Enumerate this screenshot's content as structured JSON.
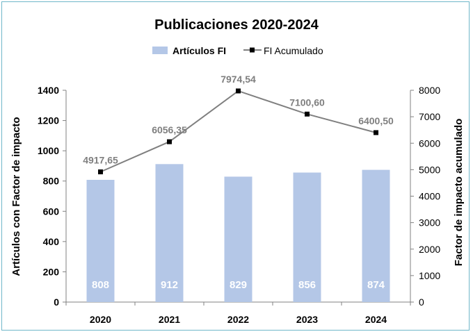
{
  "chart_data": {
    "type": "bar",
    "title": "Publicaciones 2020-2024",
    "categories": [
      "2020",
      "2021",
      "2022",
      "2023",
      "2024"
    ],
    "series": [
      {
        "name": "Artículos FI",
        "type": "bar",
        "axis": "left",
        "color": "#b4c7e7",
        "values": [
          808,
          912,
          829,
          856,
          874
        ],
        "labels": [
          "808",
          "912",
          "829",
          "856",
          "874"
        ]
      },
      {
        "name": "FI Acumulado",
        "type": "line",
        "axis": "right",
        "color": "#7f7f7f",
        "marker": "square",
        "values": [
          4917.65,
          6056.35,
          7974.54,
          7100.6,
          6400.5
        ],
        "labels": [
          "4917,65",
          "6056,35",
          "7974,54",
          "7100,60",
          "6400,50"
        ]
      }
    ],
    "ylabel": "Artículos con Factor de impacto",
    "ylabel_right": "Factor de impacto acumulado",
    "ylim": [
      0,
      1400
    ],
    "ylim_right": [
      0,
      8000
    ],
    "yticks": [
      "0",
      "200",
      "400",
      "600",
      "800",
      "1000",
      "1200",
      "1400"
    ],
    "yticks_right": [
      "0",
      "1000",
      "2000",
      "3000",
      "4000",
      "5000",
      "6000",
      "7000",
      "8000"
    ],
    "legend": "top-center",
    "grid": false
  }
}
